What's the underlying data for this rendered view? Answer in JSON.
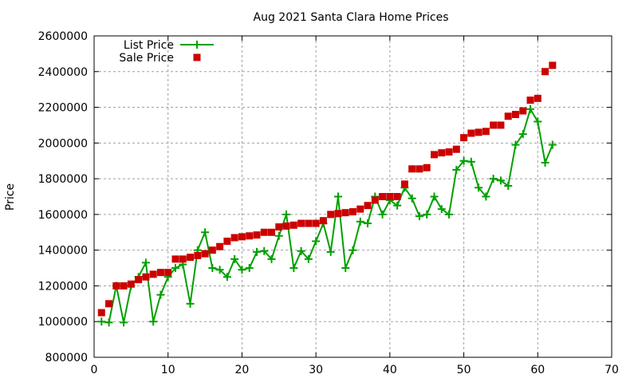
{
  "chart_data": {
    "type": "line",
    "title": "Aug 2021 Santa Clara Home Prices",
    "xlabel": "",
    "ylabel": "Price",
    "xlim": [
      0,
      70
    ],
    "ylim": [
      800000,
      2600000
    ],
    "xticks": [
      0,
      10,
      20,
      30,
      40,
      50,
      60,
      70
    ],
    "yticks": [
      800000,
      1000000,
      1200000,
      1400000,
      1600000,
      1800000,
      2000000,
      2200000,
      2400000,
      2600000
    ],
    "grid": true,
    "legend_position": "top-left",
    "x": [
      1,
      2,
      3,
      4,
      5,
      6,
      7,
      8,
      9,
      10,
      11,
      12,
      13,
      14,
      15,
      16,
      17,
      18,
      19,
      20,
      21,
      22,
      23,
      24,
      25,
      26,
      27,
      28,
      29,
      30,
      31,
      32,
      33,
      34,
      35,
      36,
      37,
      38,
      39,
      40,
      41,
      42,
      43,
      44,
      45,
      46,
      47,
      48,
      49,
      50,
      51,
      52,
      53,
      54,
      55,
      56,
      57,
      58,
      59,
      60,
      61,
      62
    ],
    "series": [
      {
        "name": "List Price",
        "style": "linespoints",
        "marker": "plus",
        "color": "#00a000",
        "values": [
          1000000,
          995000,
          1200000,
          995000,
          1200000,
          1250000,
          1330000,
          1000000,
          1150000,
          1250000,
          1300000,
          1320000,
          1100000,
          1400000,
          1500000,
          1300000,
          1290000,
          1250000,
          1350000,
          1290000,
          1300000,
          1390000,
          1395000,
          1350000,
          1480000,
          1600000,
          1300000,
          1395000,
          1350000,
          1450000,
          1550000,
          1390000,
          1700000,
          1300000,
          1400000,
          1560000,
          1550000,
          1700000,
          1600000,
          1680000,
          1650000,
          1750000,
          1690000,
          1590000,
          1600000,
          1700000,
          1630000,
          1600000,
          1850000,
          1900000,
          1895000,
          1750000,
          1700000,
          1800000,
          1790000,
          1760000,
          1990000,
          2050000,
          2190000,
          2120000,
          1890000,
          1990000
        ]
      },
      {
        "name": "Sale Price",
        "style": "points",
        "marker": "square",
        "color": "#cc0000",
        "values": [
          1050000,
          1100000,
          1200000,
          1200000,
          1210000,
          1235000,
          1250000,
          1265000,
          1275000,
          1275000,
          1350000,
          1350000,
          1360000,
          1370000,
          1380000,
          1400000,
          1420000,
          1450000,
          1470000,
          1475000,
          1480000,
          1485000,
          1500000,
          1500000,
          1530000,
          1535000,
          1540000,
          1550000,
          1550000,
          1550000,
          1565000,
          1600000,
          1605000,
          1610000,
          1615000,
          1630000,
          1650000,
          1680000,
          1700000,
          1700000,
          1700000,
          1770000,
          1855000,
          1855000,
          1862000,
          1935000,
          1945000,
          1950000,
          1965000,
          2030000,
          2055000,
          2060000,
          2065000,
          2100000,
          2100000,
          2150000,
          2160000,
          2180000,
          2240000,
          2250000,
          2400000,
          2435000
        ]
      }
    ]
  }
}
